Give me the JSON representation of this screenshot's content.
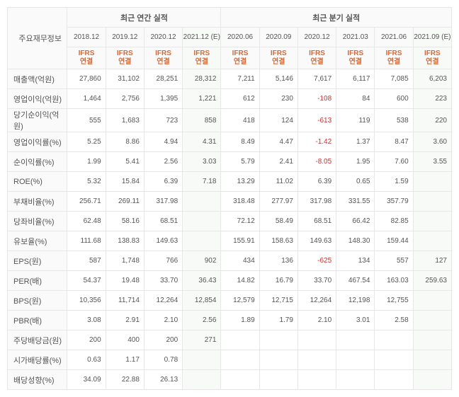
{
  "header": {
    "row_label_title": "주요재무정보",
    "group_annual": "최근 연간 실적",
    "group_quarter": "최근 분기 실적",
    "acct_std": "IFRS\n연결"
  },
  "periods": {
    "annual": [
      "2018.12",
      "2019.12",
      "2020.12",
      "2021.12 (E)"
    ],
    "quarter": [
      "2020.06",
      "2020.09",
      "2020.12",
      "2021.03",
      "2021.06",
      "2021.09 (E)"
    ]
  },
  "est_cols": [
    false,
    false,
    false,
    true,
    false,
    false,
    false,
    false,
    false,
    true
  ],
  "rows": [
    {
      "label": "매출액(억원)",
      "v": [
        "27,860",
        "31,102",
        "28,251",
        "28,312",
        "7,211",
        "5,146",
        "7,617",
        "6,117",
        "7,085",
        "6,203"
      ],
      "sep": true
    },
    {
      "label": "영업이익(억원)",
      "v": [
        "1,464",
        "2,756",
        "1,395",
        "1,221",
        "612",
        "230",
        "-108",
        "84",
        "600",
        "223"
      ]
    },
    {
      "label": "당기순이익(억원)",
      "v": [
        "555",
        "1,683",
        "723",
        "858",
        "418",
        "124",
        "-613",
        "119",
        "538",
        "220"
      ]
    },
    {
      "label": "영업이익률(%)",
      "v": [
        "5.25",
        "8.86",
        "4.94",
        "4.31",
        "8.49",
        "4.47",
        "-1.42",
        "1.37",
        "8.47",
        "3.60"
      ],
      "sep": true
    },
    {
      "label": "순이익률(%)",
      "v": [
        "1.99",
        "5.41",
        "2.56",
        "3.03",
        "5.79",
        "2.41",
        "-8.05",
        "1.95",
        "7.60",
        "3.55"
      ]
    },
    {
      "label": "ROE(%)",
      "v": [
        "5.32",
        "15.84",
        "6.39",
        "7.18",
        "13.29",
        "11.02",
        "6.39",
        "0.65",
        "1.59",
        ""
      ]
    },
    {
      "label": "부채비율(%)",
      "v": [
        "256.71",
        "269.11",
        "317.98",
        "",
        "318.48",
        "277.97",
        "317.98",
        "331.55",
        "357.79",
        ""
      ],
      "sep": true
    },
    {
      "label": "당좌비율(%)",
      "v": [
        "62.48",
        "58.16",
        "68.51",
        "",
        "72.12",
        "58.49",
        "68.51",
        "66.42",
        "82.85",
        ""
      ]
    },
    {
      "label": "유보율(%)",
      "v": [
        "111.68",
        "138.83",
        "149.63",
        "",
        "155.91",
        "158.63",
        "149.63",
        "148.30",
        "159.44",
        ""
      ]
    },
    {
      "label": "EPS(원)",
      "v": [
        "587",
        "1,748",
        "766",
        "902",
        "434",
        "136",
        "-625",
        "134",
        "557",
        "127"
      ],
      "sep": true
    },
    {
      "label": "PER(배)",
      "v": [
        "54.37",
        "19.48",
        "33.70",
        "36.43",
        "14.82",
        "16.79",
        "33.70",
        "467.54",
        "163.03",
        "259.63"
      ]
    },
    {
      "label": "BPS(원)",
      "v": [
        "10,356",
        "11,714",
        "12,264",
        "12,854",
        "12,579",
        "12,715",
        "12,264",
        "12,198",
        "12,755",
        ""
      ]
    },
    {
      "label": "PBR(배)",
      "v": [
        "3.08",
        "2.91",
        "2.10",
        "2.56",
        "1.89",
        "1.79",
        "2.10",
        "3.01",
        "2.58",
        ""
      ]
    },
    {
      "label": "주당배당금(원)",
      "v": [
        "200",
        "400",
        "200",
        "271",
        "",
        "",
        "",
        "",
        "",
        ""
      ],
      "sep": true
    },
    {
      "label": "시가배당률(%)",
      "v": [
        "0.63",
        "1.17",
        "0.78",
        "",
        "",
        "",
        "",
        "",
        "",
        ""
      ]
    },
    {
      "label": "배당성향(%)",
      "v": [
        "34.09",
        "22.88",
        "26.13",
        "",
        "",
        "",
        "",
        "",
        "",
        ""
      ]
    }
  ],
  "colors": {
    "negative": "#c83232",
    "sub_header": "#d06b3c",
    "border": "#e7e7e7",
    "header_bg": "#fafafa",
    "est_bg": "#f7faf7"
  }
}
